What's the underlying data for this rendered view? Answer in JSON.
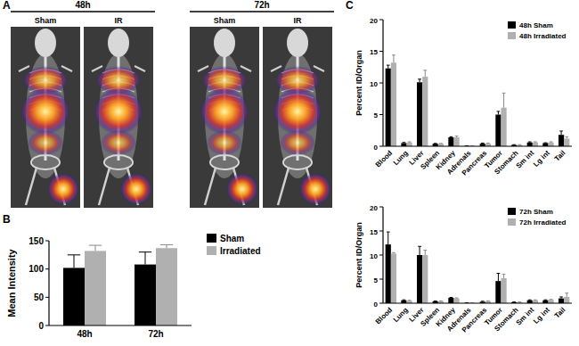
{
  "panel_labels": [
    "A",
    "B",
    "C"
  ],
  "images": {
    "groups": [
      {
        "label": "48h",
        "items": [
          "Sham",
          "IR"
        ]
      },
      {
        "label": "72h",
        "items": [
          "Sham",
          "IR"
        ]
      }
    ]
  },
  "chart_data": [
    {
      "type": "bar",
      "y_label": "Mean Intensity",
      "categories": [
        "48h",
        "72h"
      ],
      "series": [
        {
          "name": "Sham",
          "color": "#000000",
          "values": [
            102,
            108
          ],
          "errors": [
            23,
            22
          ]
        },
        {
          "name": "Irradiated",
          "color": "#b0b0b0",
          "values": [
            132,
            137
          ],
          "errors": [
            10,
            6
          ]
        }
      ],
      "ylim": [
        0,
        150
      ],
      "yticks": [
        0,
        50,
        100,
        150
      ],
      "legend": "upper right"
    },
    {
      "type": "bar",
      "y_label": "Percent ID/Organ",
      "categories": [
        "Blood",
        "Lung",
        "Liver",
        "Spleen",
        "Kidney",
        "Adrenals",
        "Pancreas",
        "Tumor",
        "Stomach",
        "Sm int",
        "Lg int",
        "Tail"
      ],
      "series": [
        {
          "name": "48h Sham",
          "color": "#000000",
          "values": [
            12.3,
            0.5,
            10.1,
            0.4,
            1.4,
            0.05,
            0.4,
            5.0,
            0.2,
            0.6,
            0.5,
            1.8
          ],
          "errors": [
            0.5,
            0.1,
            0.5,
            0.05,
            0.1,
            0.02,
            0.1,
            0.5,
            0.05,
            0.1,
            0.05,
            0.6
          ]
        },
        {
          "name": "48h Irradiated",
          "color": "#b0b0b0",
          "values": [
            13.2,
            0.6,
            11.0,
            0.4,
            1.4,
            0.05,
            0.4,
            6.1,
            0.2,
            0.6,
            0.6,
            1.2
          ],
          "errors": [
            1.2,
            0.1,
            1.0,
            0.05,
            0.2,
            0.02,
            0.1,
            2.3,
            0.05,
            0.1,
            0.1,
            0.3
          ]
        }
      ],
      "ylim": [
        0,
        20
      ],
      "yticks": [
        0,
        5,
        10,
        15,
        20
      ],
      "legend": "upper right"
    },
    {
      "type": "bar",
      "y_label": "Percent ID/Organ",
      "categories": [
        "Blood",
        "Lung",
        "Liver",
        "Spleen",
        "Kidney",
        "Adrenals",
        "Pancreas",
        "Tumor",
        "Stomach",
        "Sm int",
        "Lg int",
        "Tail"
      ],
      "series": [
        {
          "name": "72h Sham",
          "color": "#000000",
          "values": [
            12.2,
            0.6,
            10.0,
            0.4,
            1.1,
            0.05,
            0.3,
            4.6,
            0.2,
            0.6,
            0.6,
            1.0
          ],
          "errors": [
            2.6,
            0.1,
            1.8,
            0.05,
            0.1,
            0.02,
            0.1,
            1.6,
            0.05,
            0.1,
            0.1,
            0.3
          ]
        },
        {
          "name": "72h Irradiated",
          "color": "#b0b0b0",
          "values": [
            10.3,
            0.5,
            10.0,
            0.4,
            1.0,
            0.05,
            0.4,
            5.2,
            0.2,
            0.6,
            0.7,
            1.3
          ],
          "errors": [
            0.2,
            0.1,
            1.0,
            0.05,
            0.1,
            0.02,
            0.1,
            0.8,
            0.05,
            0.1,
            0.1,
            0.8
          ]
        }
      ],
      "ylim": [
        0,
        20
      ],
      "yticks": [
        0,
        5,
        10,
        15,
        20
      ],
      "legend": "upper right"
    }
  ]
}
